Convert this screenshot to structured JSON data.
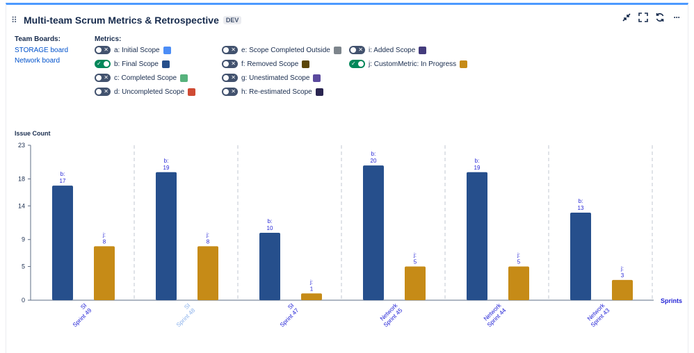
{
  "header": {
    "title": "Multi-team Scrum Metrics & Retrospective",
    "badge": "DEV"
  },
  "toolbar": {
    "icons": [
      "minimize-icon",
      "fullscreen-icon",
      "refresh-icon",
      "more-icon"
    ],
    "more_label": "···"
  },
  "boards": {
    "label": "Team Boards:",
    "items": [
      "STORAGE board",
      "Network board"
    ]
  },
  "metrics": {
    "label": "Metrics:",
    "items": [
      {
        "name": "a: Initial Scope",
        "color": "#4c8df6",
        "on": false
      },
      {
        "name": "b: Final Scope",
        "color": "#264f8c",
        "on": true
      },
      {
        "name": "c: Completed Scope",
        "color": "#57b27c",
        "on": false
      },
      {
        "name": "d: Uncompleted Scope",
        "color": "#cf4b34",
        "on": false
      },
      {
        "name": "e: Scope Completed Outside",
        "color": "#7d858c",
        "on": false
      },
      {
        "name": "f: Removed Scope",
        "color": "#5c4709",
        "on": false
      },
      {
        "name": "g: Unestimated Scope",
        "color": "#5b4a9e",
        "on": false
      },
      {
        "name": "h: Re-estimated Scope",
        "color": "#2a2550",
        "on": false
      },
      {
        "name": "i: Added Scope",
        "color": "#433b7c",
        "on": false
      },
      {
        "name": "j: CustomMetric: In Progress",
        "color": "#c68b17",
        "on": true
      }
    ]
  },
  "chart_data": {
    "type": "bar",
    "ylabel": "Issue Count",
    "xlabel": "Sprints",
    "ylim": [
      0,
      23
    ],
    "yticks": [
      0,
      5,
      9,
      14,
      18,
      23
    ],
    "categories": [
      "SI Sprint 49",
      "SI Sprint 48",
      "SI Sprint 47",
      "Network Sprint 45",
      "Network Sprint 44",
      "Network Sprint 43"
    ],
    "highlighted_category": "SI Sprint 48",
    "series": [
      {
        "key": "b",
        "values": [
          17,
          19,
          10,
          20,
          19,
          13
        ],
        "color": "#264f8c"
      },
      {
        "key": "j",
        "values": [
          8,
          8,
          1,
          5,
          5,
          3
        ],
        "color": "#c68b17"
      }
    ],
    "label_color": "#2424d6",
    "grid": "vertical-dashed"
  }
}
